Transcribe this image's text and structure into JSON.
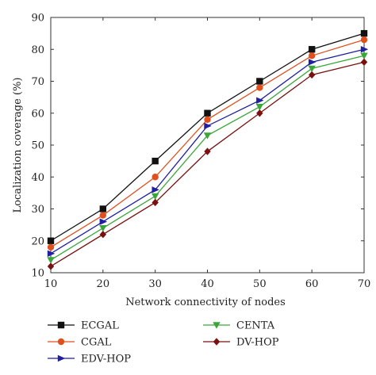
{
  "chart_data": {
    "type": "line",
    "title": "",
    "xlabel": "Network connectivity of nodes",
    "ylabel": "Localization coverage (%)",
    "x": [
      10,
      20,
      30,
      40,
      50,
      60,
      70
    ],
    "xlim": [
      10,
      70
    ],
    "ylim": [
      10,
      90
    ],
    "xticks": [
      10,
      20,
      30,
      40,
      50,
      60,
      70
    ],
    "yticks": [
      10,
      20,
      30,
      40,
      50,
      60,
      70,
      80,
      90
    ],
    "grid": false,
    "legend_position": "below",
    "series": [
      {
        "name": "ECGAL",
        "values": [
          20,
          30,
          45,
          60,
          70,
          80,
          85
        ],
        "color": "#111111",
        "marker": "square"
      },
      {
        "name": "CGAL",
        "values": [
          18,
          28,
          40,
          58,
          68,
          78,
          83
        ],
        "color": "#e0501e",
        "marker": "circle"
      },
      {
        "name": "EDV-HOP",
        "values": [
          16,
          26,
          36,
          56,
          64,
          76,
          80
        ],
        "color": "#1f1fa0",
        "marker": "triangle-right"
      },
      {
        "name": "CENTA",
        "values": [
          14,
          24,
          34,
          53,
          62,
          74,
          78
        ],
        "color": "#3aa63a",
        "marker": "triangle-down"
      },
      {
        "name": "DV-HOP",
        "values": [
          12,
          22,
          32,
          48,
          60,
          72,
          76
        ],
        "color": "#7a1010",
        "marker": "diamond"
      }
    ]
  }
}
